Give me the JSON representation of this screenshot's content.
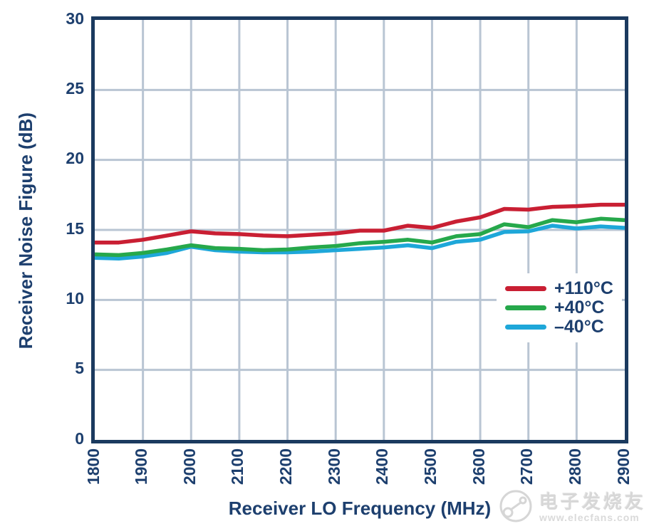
{
  "chart_data": {
    "type": "line",
    "title": "",
    "xlabel": "Receiver LO Frequency (MHz)",
    "ylabel": "Receiver Noise Figure (dB)",
    "xlim": [
      1800,
      2900
    ],
    "ylim": [
      0,
      30
    ],
    "x_ticks": [
      1800,
      1900,
      2000,
      2100,
      2200,
      2300,
      2400,
      2500,
      2600,
      2700,
      2800,
      2900
    ],
    "y_ticks": [
      0,
      5,
      10,
      15,
      20,
      25,
      30
    ],
    "grid": true,
    "legend_position": "right-middle",
    "x": [
      1800,
      1850,
      1900,
      1950,
      2000,
      2050,
      2100,
      2150,
      2200,
      2250,
      2300,
      2350,
      2400,
      2450,
      2500,
      2550,
      2600,
      2650,
      2700,
      2750,
      2800,
      2850,
      2900
    ],
    "series": [
      {
        "name": "+110°C",
        "color": "#c91f33",
        "values": [
          14.1,
          14.1,
          14.3,
          14.6,
          14.9,
          14.75,
          14.7,
          14.6,
          14.55,
          14.65,
          14.75,
          14.95,
          14.95,
          15.3,
          15.15,
          15.6,
          15.9,
          16.5,
          16.45,
          16.65,
          16.7,
          16.8,
          16.8
        ]
      },
      {
        "name": "+40°C",
        "color": "#26a84b",
        "values": [
          13.25,
          13.2,
          13.35,
          13.6,
          13.9,
          13.7,
          13.65,
          13.55,
          13.6,
          13.75,
          13.85,
          14.05,
          14.15,
          14.3,
          14.1,
          14.55,
          14.7,
          15.4,
          15.2,
          15.7,
          15.55,
          15.8,
          15.7
        ]
      },
      {
        "name": "–40°C",
        "color": "#1ea7d9",
        "values": [
          13.0,
          12.95,
          13.1,
          13.35,
          13.8,
          13.55,
          13.45,
          13.4,
          13.4,
          13.45,
          13.55,
          13.65,
          13.75,
          13.9,
          13.7,
          14.15,
          14.3,
          14.85,
          14.9,
          15.3,
          15.1,
          15.25,
          15.15
        ]
      }
    ]
  },
  "style": {
    "axis_color": "#1b3a5f",
    "grid_color": "#b9c5d3",
    "text_color": "#1d3f6e"
  },
  "watermark": {
    "brand": "电子发烧友",
    "url": "www.elecfans.com"
  }
}
